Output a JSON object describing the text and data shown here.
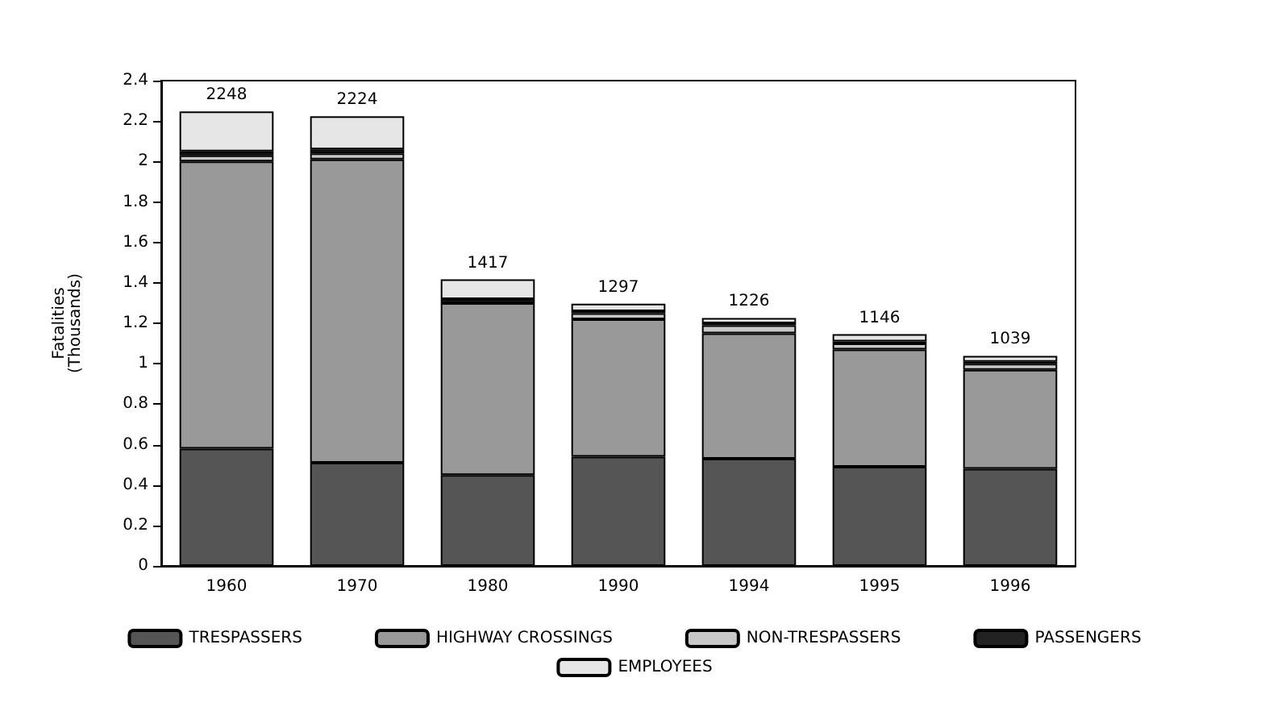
{
  "chart_data": {
    "type": "bar",
    "stacked": true,
    "ylabel": "Fatalities\n(Thousands)",
    "categories": [
      "1960",
      "1970",
      "1980",
      "1990",
      "1994",
      "1995",
      "1996"
    ],
    "series": [
      {
        "name": "TRESPASSERS",
        "color": "#555555",
        "values": [
          0.58,
          0.51,
          0.45,
          0.54,
          0.53,
          0.49,
          0.48
        ]
      },
      {
        "name": "HIGHWAY CROSSINGS",
        "color": "#999999",
        "values": [
          1.42,
          1.5,
          0.85,
          0.68,
          0.62,
          0.58,
          0.49
        ]
      },
      {
        "name": "NON-TRESPASSERS",
        "color": "#c8c8c8",
        "values": [
          0.03,
          0.03,
          null,
          0.03,
          0.04,
          0.03,
          0.03
        ]
      },
      {
        "name": "PASSENGERS",
        "color": "#222222",
        "values": [
          0.02,
          0.02,
          0.02,
          0.01,
          0.01,
          0.01,
          0.01
        ]
      },
      {
        "name": "EMPLOYEES",
        "color": "#e6e6e6",
        "values": [
          0.198,
          0.164,
          0.097,
          0.037,
          0.026,
          0.036,
          0.029
        ]
      }
    ],
    "totals": [
      "2248",
      "2224",
      "1417",
      "1297",
      "1226",
      "1146",
      "1039"
    ],
    "ylim": [
      0,
      2.4
    ],
    "yticks": [
      0,
      0.2,
      0.4,
      0.6,
      0.8,
      1,
      1.2,
      1.4,
      1.6,
      1.8,
      2,
      2.2,
      2.4
    ],
    "grid": false,
    "legend": "bottom"
  }
}
